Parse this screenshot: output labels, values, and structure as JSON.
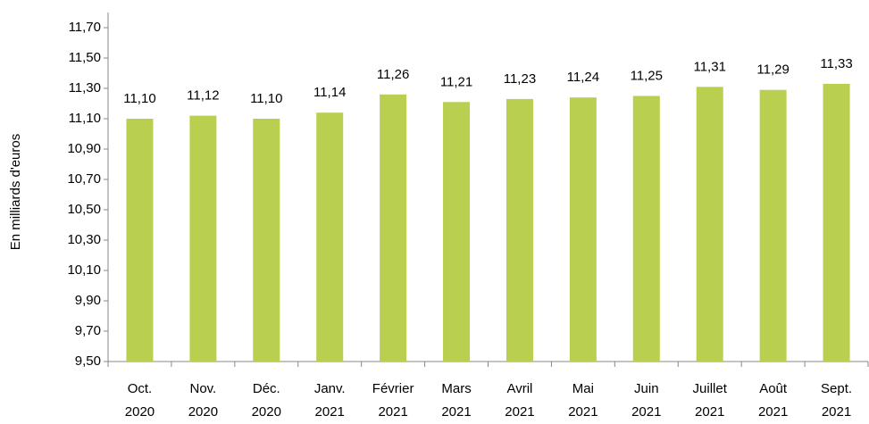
{
  "chart_data": {
    "type": "bar",
    "y_label": "En milliards d'euros",
    "categories": [
      "Oct.\n2020",
      "Nov.\n2020",
      "Déc.\n2020",
      "Janv.\n2021",
      "Février\n2021",
      "Mars\n2021",
      "Avril\n2021",
      "Mai\n2021",
      "Juin\n2021",
      "Juillet\n2021",
      "Août\n2021",
      "Sept.\n2021"
    ],
    "values": [
      11.1,
      11.12,
      11.1,
      11.14,
      11.26,
      11.21,
      11.23,
      11.24,
      11.25,
      11.31,
      11.29,
      11.33
    ],
    "value_labels": [
      "11,10",
      "11,12",
      "11,10",
      "11,14",
      "11,26",
      "11,21",
      "11,23",
      "11,24",
      "11,25",
      "11,31",
      "11,29",
      "11,33"
    ],
    "color": "#b9cf4f",
    "ylim": [
      9.5,
      11.8
    ],
    "yticks": [
      {
        "value": 9.5,
        "label": "9,50"
      },
      {
        "value": 9.7,
        "label": "9,70"
      },
      {
        "value": 9.9,
        "label": "9,90"
      },
      {
        "value": 10.1,
        "label": "10,10"
      },
      {
        "value": 10.3,
        "label": "10,30"
      },
      {
        "value": 10.5,
        "label": "10,50"
      },
      {
        "value": 10.7,
        "label": "10,70"
      },
      {
        "value": 10.9,
        "label": "10,90"
      },
      {
        "value": 11.1,
        "label": "11,10"
      },
      {
        "value": 11.3,
        "label": "11,30"
      },
      {
        "value": 11.5,
        "label": "11,50"
      },
      {
        "value": 11.7,
        "label": "11,70"
      }
    ],
    "grid": false
  }
}
